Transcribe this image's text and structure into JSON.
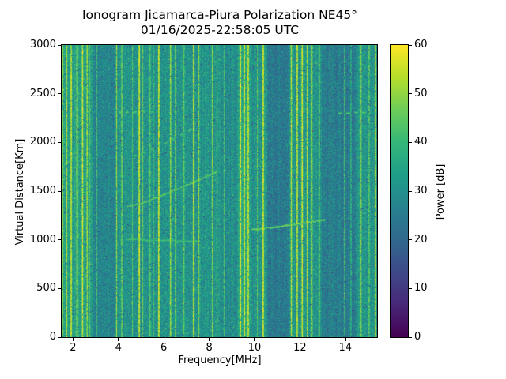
{
  "chart_data": {
    "type": "heatmap",
    "title": "Ionogram Jicamarca-Piura Polarization NE45°",
    "subtitle": "01/16/2025-22:58:05 UTC",
    "xlabel": "Frequency[MHz]",
    "ylabel": "Virtual Distance[Km]",
    "x_range": [
      1.5,
      15.4
    ],
    "y_range": [
      0,
      3000
    ],
    "x_ticks": [
      2,
      4,
      6,
      8,
      10,
      12,
      14
    ],
    "y_ticks": [
      0,
      500,
      1000,
      1500,
      2000,
      2500,
      3000
    ],
    "colorbar": {
      "label": "Power [dB]",
      "range": [
        0,
        60
      ],
      "ticks": [
        0,
        10,
        20,
        30,
        40,
        50,
        60
      ],
      "colormap": "viridis"
    },
    "background_power_db": 31,
    "noise_spread_db": 6,
    "band_offsets": [
      [
        1.5,
        2.85,
        3
      ],
      [
        2.85,
        3.85,
        -4
      ],
      [
        8.55,
        9.25,
        -2
      ],
      [
        9.28,
        9.85,
        5
      ],
      [
        10.55,
        11.52,
        -6
      ],
      [
        12.95,
        14.45,
        -6
      ]
    ],
    "rfi_stripes": [
      [
        1.55,
        0.05,
        50
      ],
      [
        1.72,
        0.05,
        54
      ],
      [
        1.92,
        0.06,
        57
      ],
      [
        2.18,
        0.06,
        58
      ],
      [
        2.42,
        0.06,
        59
      ],
      [
        2.62,
        0.05,
        55
      ],
      [
        2.75,
        0.04,
        50
      ],
      [
        3.05,
        0.04,
        42
      ],
      [
        3.55,
        0.04,
        40
      ],
      [
        3.92,
        0.05,
        52
      ],
      [
        4.15,
        0.05,
        50
      ],
      [
        4.62,
        0.04,
        44
      ],
      [
        4.92,
        0.06,
        59
      ],
      [
        5.08,
        0.04,
        50
      ],
      [
        5.38,
        0.1,
        44
      ],
      [
        5.55,
        0.05,
        42
      ],
      [
        5.78,
        0.06,
        58
      ],
      [
        6.3,
        0.05,
        54
      ],
      [
        6.52,
        0.05,
        52
      ],
      [
        6.88,
        0.08,
        45
      ],
      [
        7.32,
        0.06,
        58
      ],
      [
        7.55,
        0.05,
        51
      ],
      [
        8.15,
        0.05,
        52
      ],
      [
        8.35,
        0.04,
        47
      ],
      [
        8.65,
        0.05,
        44
      ],
      [
        9.02,
        0.04,
        43
      ],
      [
        9.38,
        0.07,
        58
      ],
      [
        9.55,
        0.07,
        57
      ],
      [
        9.72,
        0.06,
        58
      ],
      [
        10.12,
        0.05,
        45
      ],
      [
        10.38,
        0.06,
        58
      ],
      [
        11.62,
        0.06,
        55
      ],
      [
        11.88,
        0.06,
        57
      ],
      [
        12.1,
        0.06,
        59
      ],
      [
        12.32,
        0.05,
        56
      ],
      [
        12.52,
        0.06,
        58
      ],
      [
        12.85,
        0.05,
        51
      ],
      [
        13.32,
        0.04,
        43
      ],
      [
        13.95,
        0.04,
        42
      ],
      [
        14.25,
        0.04,
        44
      ],
      [
        14.68,
        0.06,
        58
      ],
      [
        15.05,
        0.05,
        48
      ],
      [
        15.32,
        0.05,
        52
      ]
    ],
    "echo_traces": [
      {
        "f0": 4.35,
        "f1": 7.6,
        "h0": 1005,
        "h1": 985,
        "power": 42,
        "dashed": false
      },
      {
        "f0": 4.4,
        "f1": 8.3,
        "h0": 1345,
        "h1": 1700,
        "power": 46,
        "dashed": false
      },
      {
        "f0": 4.7,
        "f1": 7.2,
        "h0": 1865,
        "h1": 2140,
        "power": 43,
        "dashed": true
      },
      {
        "f0": 4.0,
        "f1": 5.7,
        "h0": 2310,
        "h1": 2325,
        "power": 44,
        "dashed": true
      },
      {
        "f0": 9.85,
        "f1": 13.05,
        "h0": 1108,
        "h1": 1210,
        "power": 47,
        "dashed": false
      },
      {
        "f0": 13.55,
        "f1": 14.95,
        "h0": 2300,
        "h1": 2315,
        "power": 44,
        "dashed": true
      }
    ]
  }
}
